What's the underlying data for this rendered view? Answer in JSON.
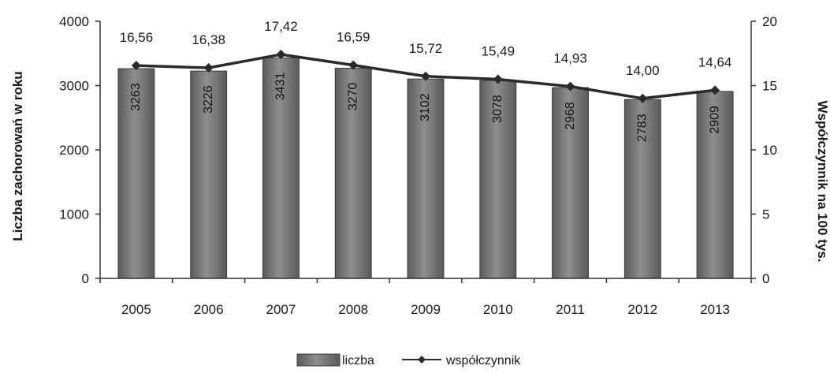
{
  "chart_data": {
    "type": "bar",
    "categories": [
      "2005",
      "2006",
      "2007",
      "2008",
      "2009",
      "2010",
      "2011",
      "2012",
      "2013"
    ],
    "series": [
      {
        "name": "liczba",
        "type": "bar",
        "axis": "left",
        "values": [
          3263,
          3226,
          3431,
          3270,
          3102,
          3078,
          2968,
          2783,
          2909
        ],
        "labels": [
          "3263",
          "3226",
          "3431",
          "3270",
          "3102",
          "3078",
          "2968",
          "2783",
          "2909"
        ]
      },
      {
        "name": "współczynnik",
        "type": "line",
        "axis": "right",
        "values": [
          16.56,
          16.38,
          17.42,
          16.59,
          15.72,
          15.49,
          14.93,
          14.0,
          14.64
        ],
        "labels": [
          "16,56",
          "16,38",
          "17,42",
          "16,59",
          "15,72",
          "15,49",
          "14,93",
          "14,00",
          "14,64"
        ]
      }
    ],
    "ylabel": "Liczba zachorowań w roku",
    "y2label": "Współczynnik na 100 tys.",
    "ylim": [
      0,
      4000
    ],
    "y2lim": [
      0,
      20
    ],
    "yticks": [
      "0",
      "1000",
      "2000",
      "3000",
      "4000"
    ],
    "y2ticks": [
      "0",
      "5",
      "10",
      "15",
      "20"
    ],
    "grid": false,
    "legend": "bottom",
    "colors": {
      "bar_fill": "#7a7a7a",
      "bar_edge": "#3a3a3a",
      "line": "#2a2a2a"
    }
  }
}
